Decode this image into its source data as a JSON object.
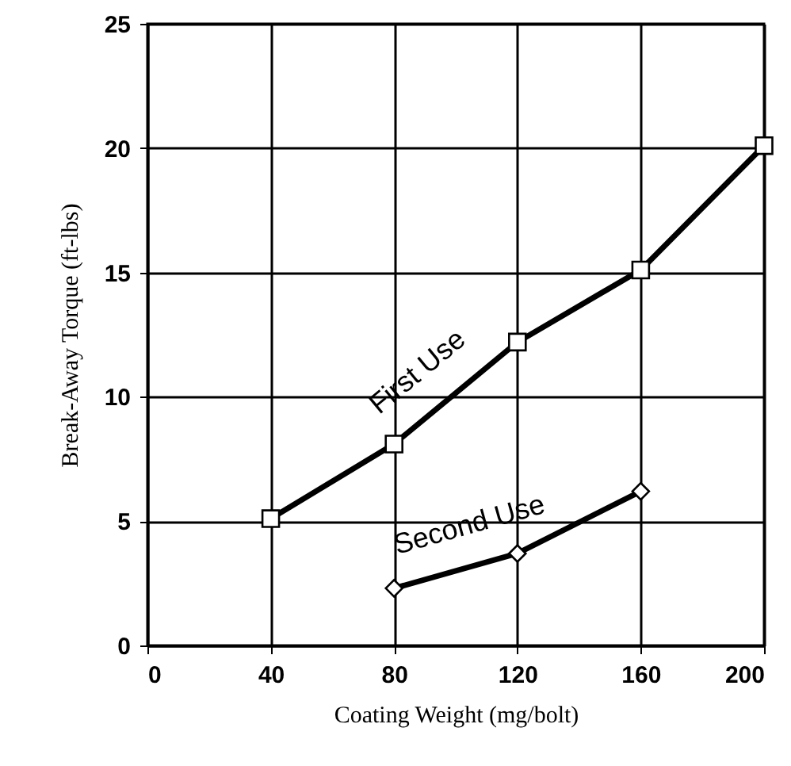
{
  "chart_data": {
    "type": "line",
    "xlabel": "Coating Weight (mg/bolt)",
    "ylabel": "Break-Away Torque (ft-lbs)",
    "x": [
      40,
      80,
      120,
      160,
      200
    ],
    "series": [
      {
        "name": "First Use",
        "color": "#000000",
        "marker": "square",
        "values": [
          5.1,
          8.1,
          12.2,
          15.1,
          20.1
        ]
      },
      {
        "name": "Second Use",
        "color": "#000000",
        "marker": "diamond",
        "x": [
          80,
          120,
          160
        ],
        "values": [
          2.3,
          3.7,
          6.2
        ]
      }
    ],
    "xlim": [
      0,
      200
    ],
    "xticks": [
      0,
      40,
      80,
      120,
      160,
      200
    ],
    "ylim": [
      0,
      25
    ],
    "yticks": [
      0,
      5,
      10,
      15,
      20,
      25
    ],
    "grid": true,
    "line_style": "solid"
  }
}
